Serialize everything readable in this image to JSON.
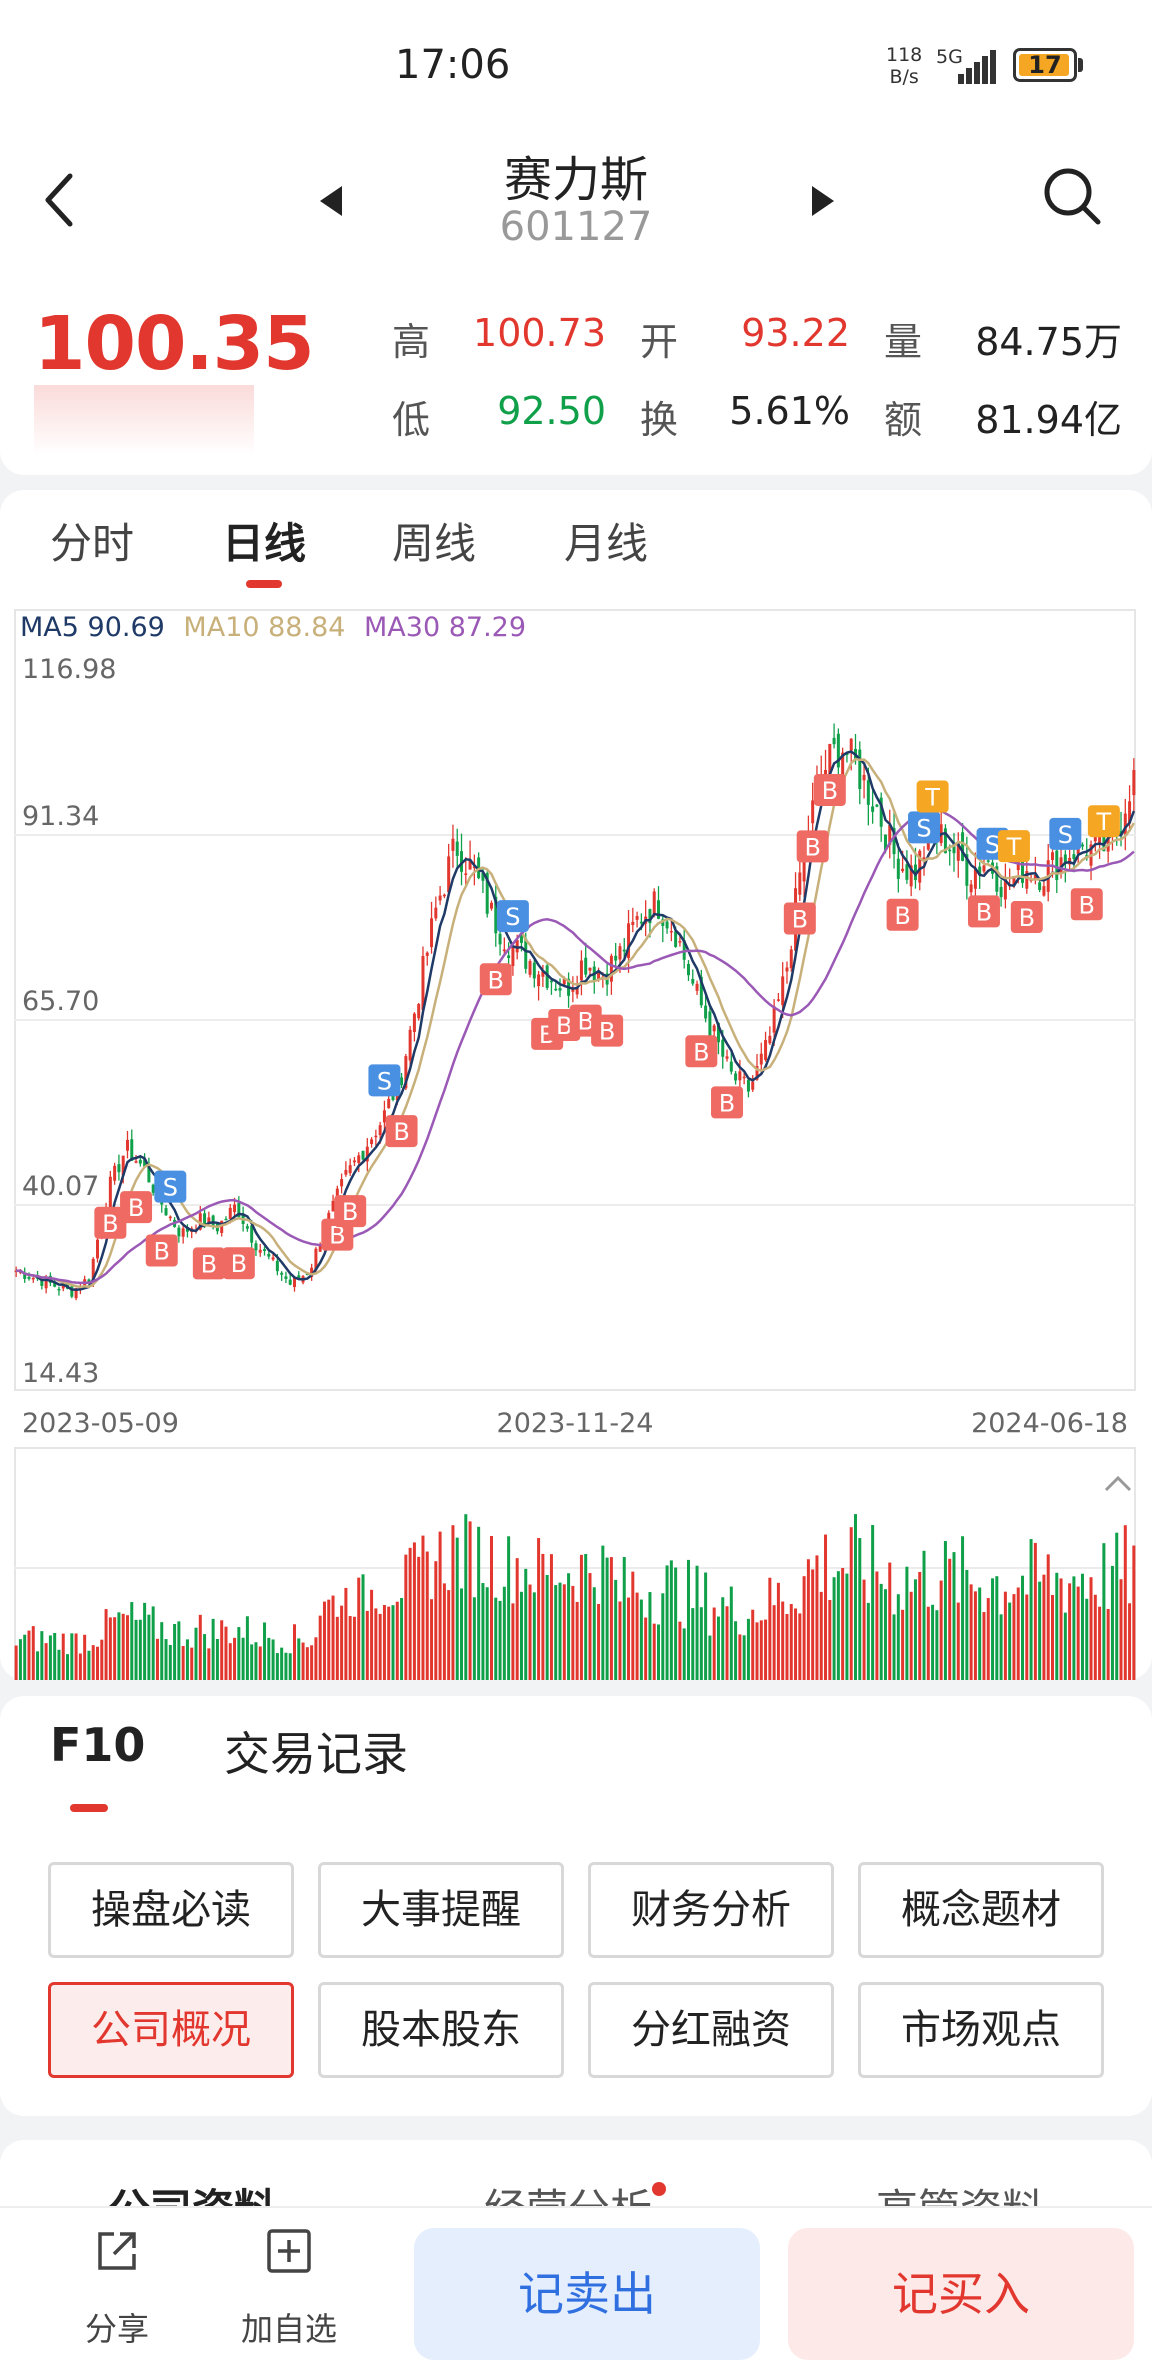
{
  "status": {
    "time": "17:06",
    "net_speed_top": "118",
    "net_speed_bottom": "B/s",
    "network": "5G",
    "battery": "17"
  },
  "header": {
    "name": "赛力斯",
    "code": "601127"
  },
  "quote": {
    "price": "100.35",
    "high_label": "高",
    "high": "100.73",
    "open_label": "开",
    "open": "93.22",
    "volume_label": "量",
    "volume": "84.75万",
    "low_label": "低",
    "low": "92.50",
    "turnover_label": "换",
    "turnover": "5.61%",
    "amount_label": "额",
    "amount": "81.94亿"
  },
  "kline_tabs": [
    "分时",
    "日线",
    "周线",
    "月线"
  ],
  "ma_legend": {
    "ma5": "MA5 90.69",
    "ma10": "MA10 88.84",
    "ma30": "MA30 87.29"
  },
  "colors": {
    "up": "#e2372e",
    "down": "#10a04a",
    "ma5": "#1f3a66",
    "ma10": "#c8b07a",
    "ma30": "#9b59b6",
    "buy_marker": "#ee6a63",
    "sell_marker": "#4a90e2",
    "t_marker": "#f5a623"
  },
  "chart_data": {
    "type": "candlestick",
    "y_ticks": [
      "116.98",
      "91.34",
      "65.70",
      "40.07",
      "14.43"
    ],
    "x_labels": [
      "2023-05-09",
      "2023-11-24",
      "2024-06-18"
    ],
    "ylim": [
      14.43,
      116.98
    ],
    "series": [
      {
        "name": "MA5",
        "value": 90.69
      },
      {
        "name": "MA10",
        "value": 88.84
      },
      {
        "name": "MA30",
        "value": 87.29
      }
    ],
    "close_trend": [
      31,
      30,
      29,
      28,
      30,
      42,
      48,
      45,
      40,
      36,
      38,
      37,
      40,
      35,
      32,
      29,
      31,
      38,
      44,
      48,
      52,
      58,
      70,
      82,
      90,
      86,
      80,
      76,
      74,
      72,
      70,
      74,
      72,
      75,
      80,
      82,
      78,
      70,
      64,
      58,
      56,
      62,
      72,
      90,
      100,
      104,
      100,
      95,
      88,
      86,
      92,
      90,
      86,
      88,
      84,
      87,
      86,
      88,
      90,
      89,
      91,
      100.35
    ],
    "markers": {
      "buy": "B",
      "sell": "S",
      "t": "T"
    }
  },
  "f10": {
    "tabs": [
      "F10",
      "交易记录"
    ],
    "buttons": [
      "操盘必读",
      "大事提醒",
      "财务分析",
      "概念题材",
      "公司概况",
      "股本股东",
      "分红融资",
      "市场观点"
    ]
  },
  "sub_tabs": [
    "公司资料",
    "经营分析",
    "高管资料"
  ],
  "bottom": {
    "share": "分享",
    "watch": "加自选",
    "sell": "记卖出",
    "buy": "记买入"
  }
}
